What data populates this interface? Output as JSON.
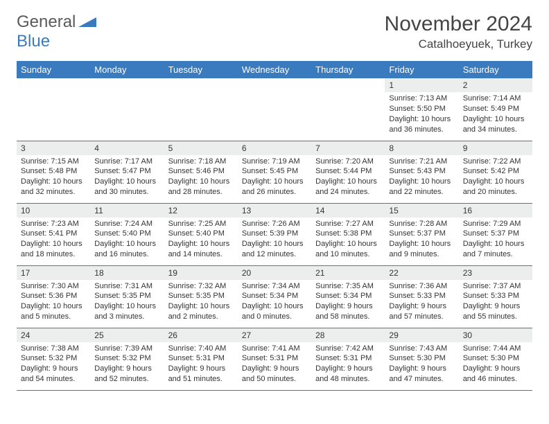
{
  "logo": {
    "text1": "General",
    "text2": "Blue"
  },
  "title": "November 2024",
  "location": "Catalhoeyuek, Turkey",
  "colors": {
    "header_bg": "#3a7bbf",
    "header_text": "#ffffff",
    "daynum_bg": "#eceeee",
    "border": "#3a7bbf",
    "logo_gray": "#5a5a5a",
    "logo_blue": "#3a7bbf"
  },
  "weekdays": [
    "Sunday",
    "Monday",
    "Tuesday",
    "Wednesday",
    "Thursday",
    "Friday",
    "Saturday"
  ],
  "days": [
    {
      "n": 1,
      "sunrise": "7:13 AM",
      "sunset": "5:50 PM",
      "daylight": "10 hours and 36 minutes."
    },
    {
      "n": 2,
      "sunrise": "7:14 AM",
      "sunset": "5:49 PM",
      "daylight": "10 hours and 34 minutes."
    },
    {
      "n": 3,
      "sunrise": "7:15 AM",
      "sunset": "5:48 PM",
      "daylight": "10 hours and 32 minutes."
    },
    {
      "n": 4,
      "sunrise": "7:17 AM",
      "sunset": "5:47 PM",
      "daylight": "10 hours and 30 minutes."
    },
    {
      "n": 5,
      "sunrise": "7:18 AM",
      "sunset": "5:46 PM",
      "daylight": "10 hours and 28 minutes."
    },
    {
      "n": 6,
      "sunrise": "7:19 AM",
      "sunset": "5:45 PM",
      "daylight": "10 hours and 26 minutes."
    },
    {
      "n": 7,
      "sunrise": "7:20 AM",
      "sunset": "5:44 PM",
      "daylight": "10 hours and 24 minutes."
    },
    {
      "n": 8,
      "sunrise": "7:21 AM",
      "sunset": "5:43 PM",
      "daylight": "10 hours and 22 minutes."
    },
    {
      "n": 9,
      "sunrise": "7:22 AM",
      "sunset": "5:42 PM",
      "daylight": "10 hours and 20 minutes."
    },
    {
      "n": 10,
      "sunrise": "7:23 AM",
      "sunset": "5:41 PM",
      "daylight": "10 hours and 18 minutes."
    },
    {
      "n": 11,
      "sunrise": "7:24 AM",
      "sunset": "5:40 PM",
      "daylight": "10 hours and 16 minutes."
    },
    {
      "n": 12,
      "sunrise": "7:25 AM",
      "sunset": "5:40 PM",
      "daylight": "10 hours and 14 minutes."
    },
    {
      "n": 13,
      "sunrise": "7:26 AM",
      "sunset": "5:39 PM",
      "daylight": "10 hours and 12 minutes."
    },
    {
      "n": 14,
      "sunrise": "7:27 AM",
      "sunset": "5:38 PM",
      "daylight": "10 hours and 10 minutes."
    },
    {
      "n": 15,
      "sunrise": "7:28 AM",
      "sunset": "5:37 PM",
      "daylight": "10 hours and 9 minutes."
    },
    {
      "n": 16,
      "sunrise": "7:29 AM",
      "sunset": "5:37 PM",
      "daylight": "10 hours and 7 minutes."
    },
    {
      "n": 17,
      "sunrise": "7:30 AM",
      "sunset": "5:36 PM",
      "daylight": "10 hours and 5 minutes."
    },
    {
      "n": 18,
      "sunrise": "7:31 AM",
      "sunset": "5:35 PM",
      "daylight": "10 hours and 3 minutes."
    },
    {
      "n": 19,
      "sunrise": "7:32 AM",
      "sunset": "5:35 PM",
      "daylight": "10 hours and 2 minutes."
    },
    {
      "n": 20,
      "sunrise": "7:34 AM",
      "sunset": "5:34 PM",
      "daylight": "10 hours and 0 minutes."
    },
    {
      "n": 21,
      "sunrise": "7:35 AM",
      "sunset": "5:34 PM",
      "daylight": "9 hours and 58 minutes."
    },
    {
      "n": 22,
      "sunrise": "7:36 AM",
      "sunset": "5:33 PM",
      "daylight": "9 hours and 57 minutes."
    },
    {
      "n": 23,
      "sunrise": "7:37 AM",
      "sunset": "5:33 PM",
      "daylight": "9 hours and 55 minutes."
    },
    {
      "n": 24,
      "sunrise": "7:38 AM",
      "sunset": "5:32 PM",
      "daylight": "9 hours and 54 minutes."
    },
    {
      "n": 25,
      "sunrise": "7:39 AM",
      "sunset": "5:32 PM",
      "daylight": "9 hours and 52 minutes."
    },
    {
      "n": 26,
      "sunrise": "7:40 AM",
      "sunset": "5:31 PM",
      "daylight": "9 hours and 51 minutes."
    },
    {
      "n": 27,
      "sunrise": "7:41 AM",
      "sunset": "5:31 PM",
      "daylight": "9 hours and 50 minutes."
    },
    {
      "n": 28,
      "sunrise": "7:42 AM",
      "sunset": "5:31 PM",
      "daylight": "9 hours and 48 minutes."
    },
    {
      "n": 29,
      "sunrise": "7:43 AM",
      "sunset": "5:30 PM",
      "daylight": "9 hours and 47 minutes."
    },
    {
      "n": 30,
      "sunrise": "7:44 AM",
      "sunset": "5:30 PM",
      "daylight": "9 hours and 46 minutes."
    }
  ],
  "first_weekday_index": 5,
  "labels": {
    "sunrise": "Sunrise:",
    "sunset": "Sunset:",
    "daylight": "Daylight:"
  }
}
